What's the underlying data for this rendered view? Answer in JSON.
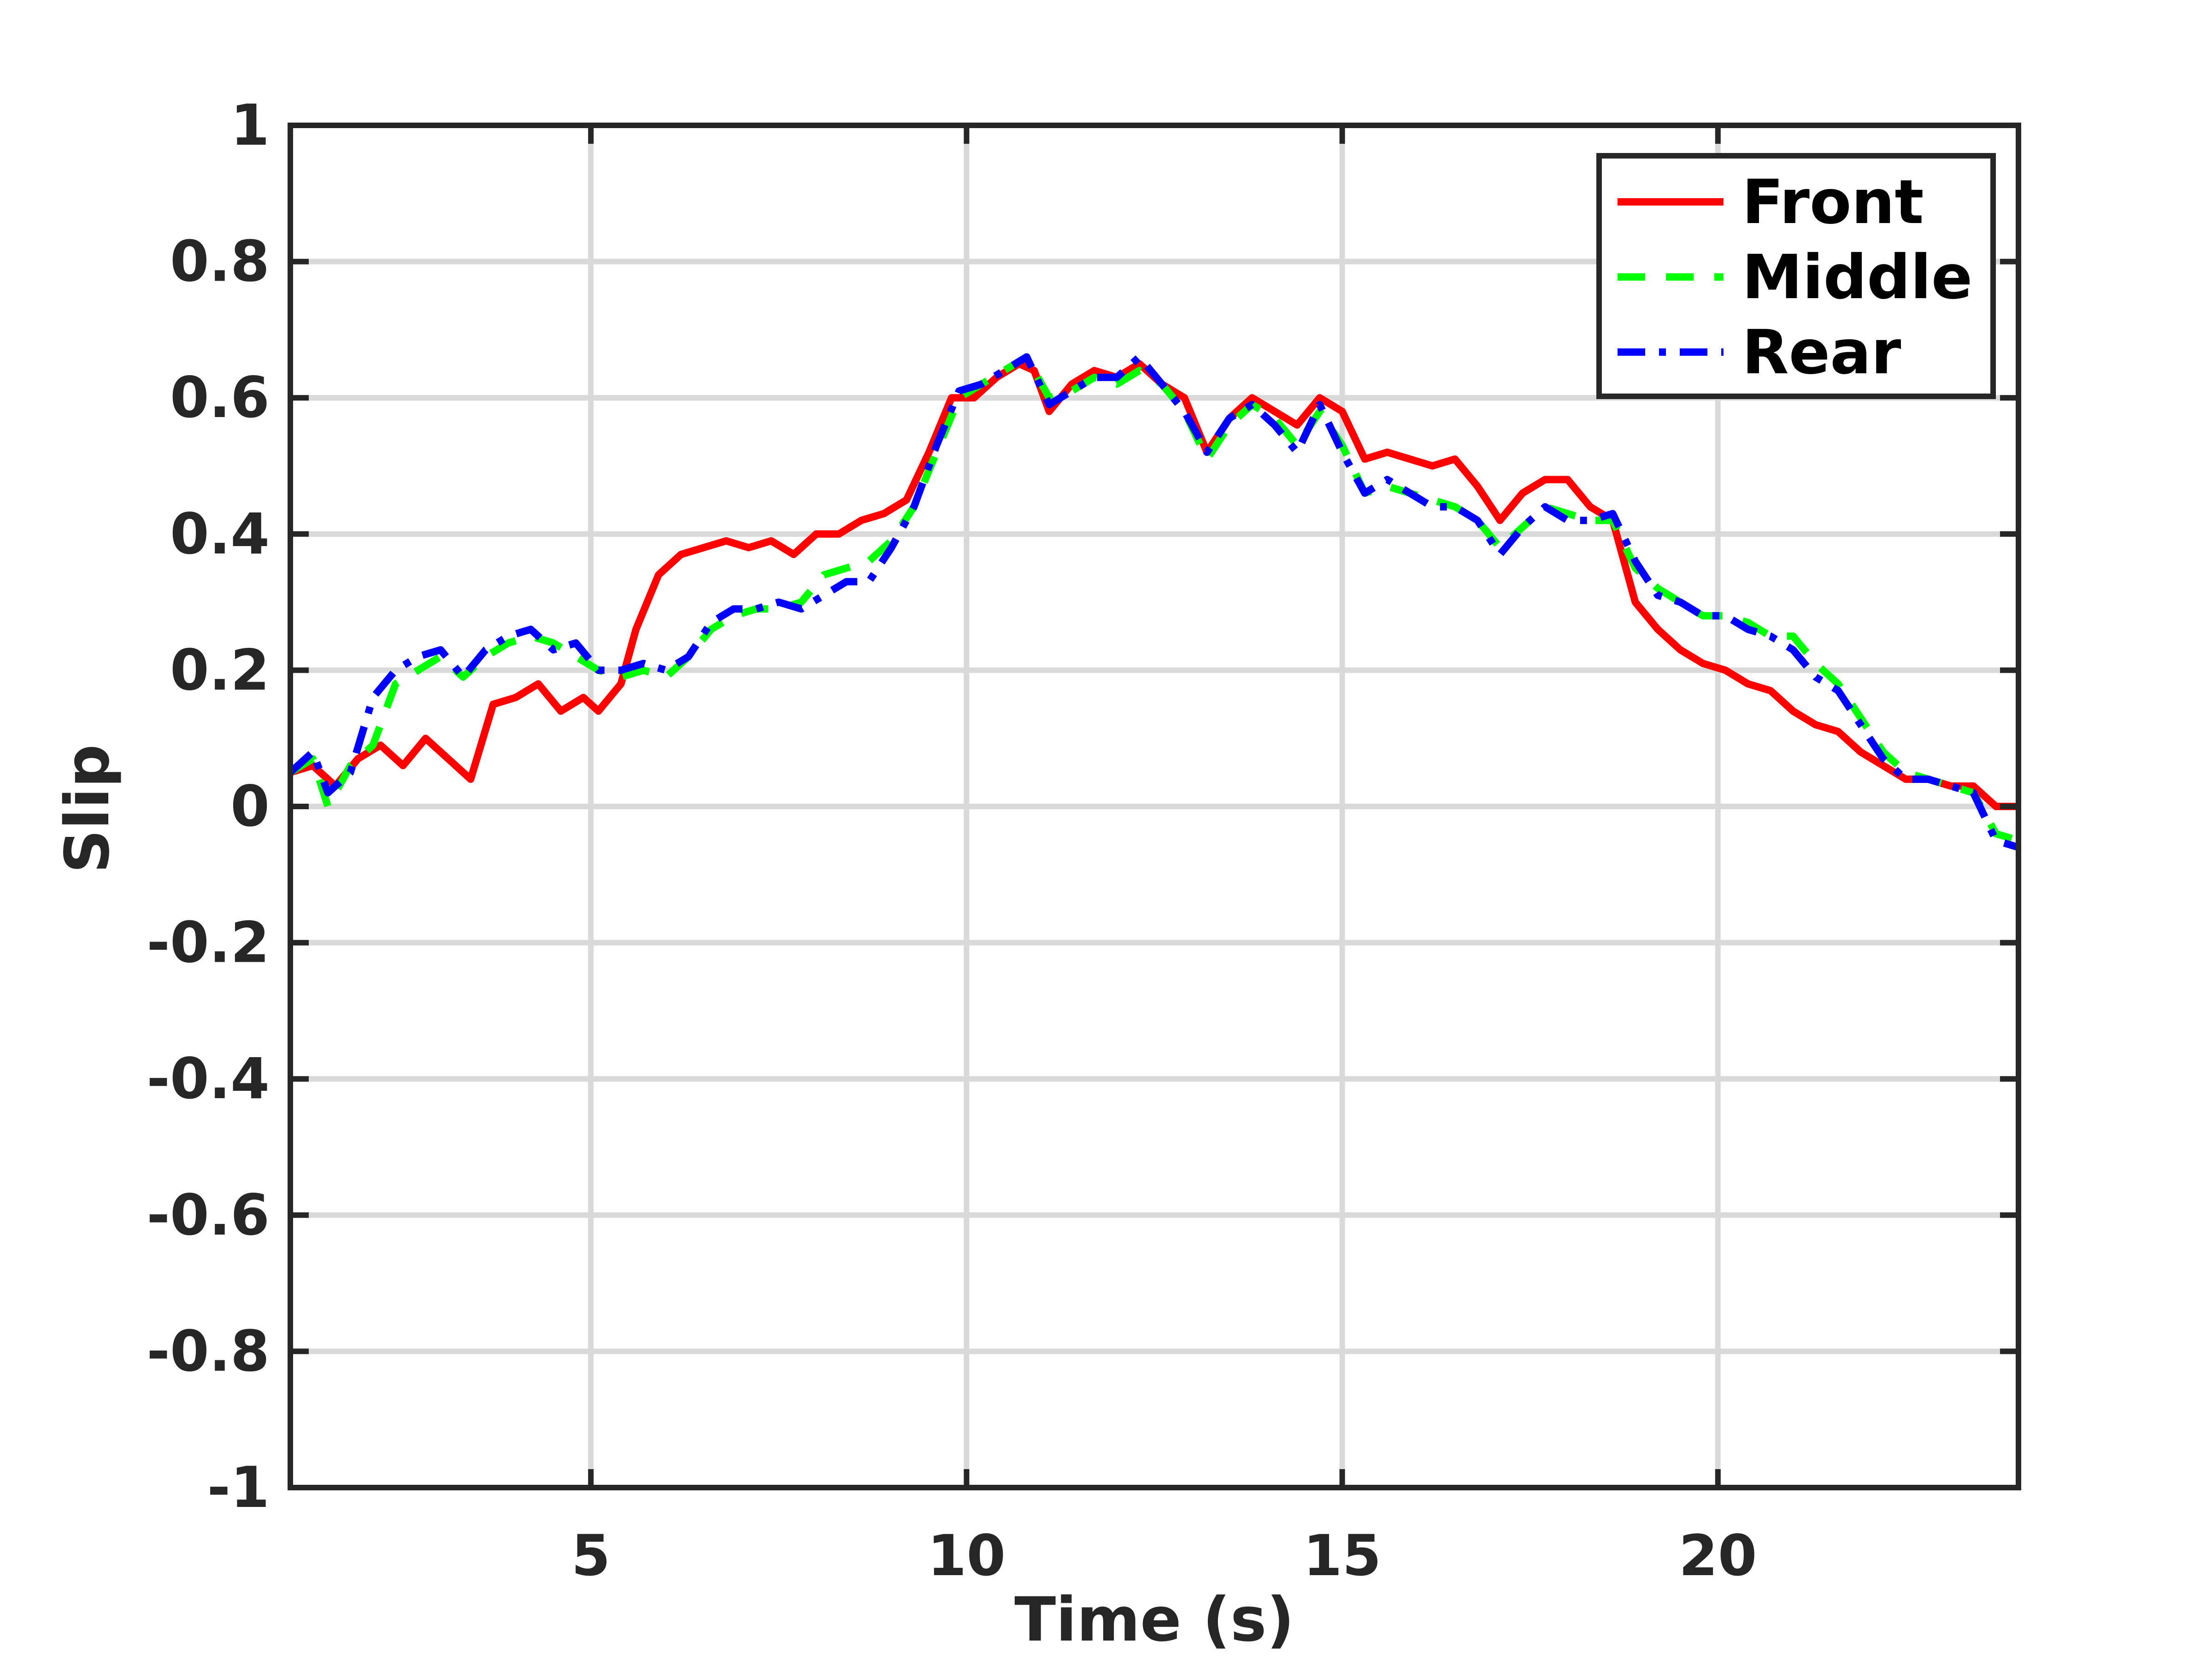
{
  "chart_data": {
    "type": "line",
    "title": "",
    "xlabel": "Time (s)",
    "ylabel": "Slip",
    "xlim": [
      1,
      24
    ],
    "ylim": [
      -1,
      1
    ],
    "xticks": [
      5,
      10,
      15,
      20
    ],
    "xtick_labels": [
      "5",
      "10",
      "15",
      "20"
    ],
    "yticks": [
      -1,
      -0.8,
      -0.6,
      -0.4,
      -0.2,
      0,
      0.2,
      0.4,
      0.6,
      0.8,
      1
    ],
    "ytick_labels": [
      "-1",
      "-0.8",
      "-0.6",
      "-0.4",
      "-0.2",
      "0",
      "0.2",
      "0.4",
      "0.6",
      "0.8",
      "1"
    ],
    "grid": true,
    "legend_position": "top-right",
    "series": [
      {
        "name": "Front",
        "color": "#ff0000",
        "dash": "solid",
        "points": [
          [
            1.0,
            0.05
          ],
          [
            1.3,
            0.06
          ],
          [
            1.6,
            0.03
          ],
          [
            1.9,
            0.07
          ],
          [
            2.2,
            0.09
          ],
          [
            2.5,
            0.06
          ],
          [
            2.8,
            0.1
          ],
          [
            3.1,
            0.07
          ],
          [
            3.4,
            0.04
          ],
          [
            3.7,
            0.15
          ],
          [
            4.0,
            0.16
          ],
          [
            4.3,
            0.18
          ],
          [
            4.6,
            0.14
          ],
          [
            4.9,
            0.16
          ],
          [
            5.1,
            0.14
          ],
          [
            5.4,
            0.18
          ],
          [
            5.6,
            0.26
          ],
          [
            5.9,
            0.34
          ],
          [
            6.2,
            0.37
          ],
          [
            6.5,
            0.38
          ],
          [
            6.8,
            0.39
          ],
          [
            7.1,
            0.38
          ],
          [
            7.4,
            0.39
          ],
          [
            7.7,
            0.37
          ],
          [
            8.0,
            0.4
          ],
          [
            8.3,
            0.4
          ],
          [
            8.6,
            0.42
          ],
          [
            8.9,
            0.43
          ],
          [
            9.2,
            0.45
          ],
          [
            9.5,
            0.52
          ],
          [
            9.8,
            0.6
          ],
          [
            10.1,
            0.6
          ],
          [
            10.4,
            0.63
          ],
          [
            10.7,
            0.65
          ],
          [
            10.9,
            0.64
          ],
          [
            11.1,
            0.58
          ],
          [
            11.4,
            0.62
          ],
          [
            11.7,
            0.64
          ],
          [
            12.0,
            0.63
          ],
          [
            12.3,
            0.65
          ],
          [
            12.6,
            0.62
          ],
          [
            12.9,
            0.6
          ],
          [
            13.2,
            0.52
          ],
          [
            13.5,
            0.57
          ],
          [
            13.8,
            0.6
          ],
          [
            14.1,
            0.58
          ],
          [
            14.4,
            0.56
          ],
          [
            14.7,
            0.6
          ],
          [
            15.0,
            0.58
          ],
          [
            15.3,
            0.51
          ],
          [
            15.6,
            0.52
          ],
          [
            15.9,
            0.51
          ],
          [
            16.2,
            0.5
          ],
          [
            16.5,
            0.51
          ],
          [
            16.8,
            0.47
          ],
          [
            17.1,
            0.42
          ],
          [
            17.4,
            0.46
          ],
          [
            17.7,
            0.48
          ],
          [
            18.0,
            0.48
          ],
          [
            18.3,
            0.44
          ],
          [
            18.6,
            0.42
          ],
          [
            18.9,
            0.3
          ],
          [
            19.2,
            0.26
          ],
          [
            19.5,
            0.23
          ],
          [
            19.8,
            0.21
          ],
          [
            20.1,
            0.2
          ],
          [
            20.4,
            0.18
          ],
          [
            20.7,
            0.17
          ],
          [
            21.0,
            0.14
          ],
          [
            21.3,
            0.12
          ],
          [
            21.6,
            0.11
          ],
          [
            21.9,
            0.08
          ],
          [
            22.2,
            0.06
          ],
          [
            22.5,
            0.04
          ],
          [
            22.8,
            0.04
          ],
          [
            23.1,
            0.03
          ],
          [
            23.4,
            0.03
          ],
          [
            23.7,
            0.0
          ],
          [
            24.0,
            0.0
          ]
        ]
      },
      {
        "name": "Middle",
        "color": "#00ff00",
        "dash": "dashed",
        "points": [
          [
            1.0,
            0.05
          ],
          [
            1.3,
            0.07
          ],
          [
            1.5,
            0.0
          ],
          [
            1.8,
            0.06
          ],
          [
            2.1,
            0.09
          ],
          [
            2.4,
            0.18
          ],
          [
            2.7,
            0.2
          ],
          [
            3.0,
            0.22
          ],
          [
            3.3,
            0.19
          ],
          [
            3.6,
            0.22
          ],
          [
            3.9,
            0.24
          ],
          [
            4.2,
            0.25
          ],
          [
            4.5,
            0.24
          ],
          [
            4.8,
            0.22
          ],
          [
            5.1,
            0.2
          ],
          [
            5.4,
            0.19
          ],
          [
            5.7,
            0.2
          ],
          [
            6.0,
            0.19
          ],
          [
            6.3,
            0.22
          ],
          [
            6.6,
            0.26
          ],
          [
            6.9,
            0.28
          ],
          [
            7.2,
            0.29
          ],
          [
            7.5,
            0.29
          ],
          [
            7.8,
            0.3
          ],
          [
            8.1,
            0.34
          ],
          [
            8.4,
            0.35
          ],
          [
            8.7,
            0.36
          ],
          [
            9.0,
            0.39
          ],
          [
            9.3,
            0.44
          ],
          [
            9.6,
            0.52
          ],
          [
            9.9,
            0.6
          ],
          [
            10.2,
            0.62
          ],
          [
            10.5,
            0.64
          ],
          [
            10.8,
            0.66
          ],
          [
            11.1,
            0.6
          ],
          [
            11.4,
            0.61
          ],
          [
            11.7,
            0.63
          ],
          [
            12.0,
            0.62
          ],
          [
            12.3,
            0.64
          ],
          [
            12.6,
            0.62
          ],
          [
            12.9,
            0.58
          ],
          [
            13.2,
            0.51
          ],
          [
            13.5,
            0.56
          ],
          [
            13.8,
            0.59
          ],
          [
            14.1,
            0.57
          ],
          [
            14.4,
            0.53
          ],
          [
            14.7,
            0.58
          ],
          [
            15.0,
            0.53
          ],
          [
            15.3,
            0.46
          ],
          [
            15.6,
            0.47
          ],
          [
            15.9,
            0.46
          ],
          [
            16.2,
            0.45
          ],
          [
            16.5,
            0.44
          ],
          [
            16.8,
            0.42
          ],
          [
            17.1,
            0.38
          ],
          [
            17.4,
            0.41
          ],
          [
            17.7,
            0.44
          ],
          [
            18.0,
            0.43
          ],
          [
            18.3,
            0.42
          ],
          [
            18.6,
            0.42
          ],
          [
            18.9,
            0.35
          ],
          [
            19.2,
            0.32
          ],
          [
            19.5,
            0.3
          ],
          [
            19.8,
            0.28
          ],
          [
            20.1,
            0.28
          ],
          [
            20.4,
            0.27
          ],
          [
            20.7,
            0.25
          ],
          [
            21.0,
            0.25
          ],
          [
            21.3,
            0.21
          ],
          [
            21.6,
            0.18
          ],
          [
            21.9,
            0.13
          ],
          [
            22.2,
            0.08
          ],
          [
            22.5,
            0.05
          ],
          [
            22.8,
            0.04
          ],
          [
            23.1,
            0.03
          ],
          [
            23.4,
            0.02
          ],
          [
            23.7,
            -0.04
          ],
          [
            24.0,
            -0.05
          ]
        ]
      },
      {
        "name": "Rear",
        "color": "#0000ff",
        "dash": "dashdot",
        "points": [
          [
            1.0,
            0.05
          ],
          [
            1.3,
            0.08
          ],
          [
            1.5,
            0.02
          ],
          [
            1.8,
            0.05
          ],
          [
            2.1,
            0.16
          ],
          [
            2.4,
            0.2
          ],
          [
            2.7,
            0.22
          ],
          [
            3.0,
            0.23
          ],
          [
            3.3,
            0.19
          ],
          [
            3.6,
            0.23
          ],
          [
            3.9,
            0.25
          ],
          [
            4.2,
            0.26
          ],
          [
            4.5,
            0.23
          ],
          [
            4.8,
            0.24
          ],
          [
            5.1,
            0.2
          ],
          [
            5.4,
            0.2
          ],
          [
            5.7,
            0.21
          ],
          [
            6.0,
            0.2
          ],
          [
            6.3,
            0.22
          ],
          [
            6.6,
            0.27
          ],
          [
            6.9,
            0.29
          ],
          [
            7.2,
            0.29
          ],
          [
            7.5,
            0.3
          ],
          [
            7.8,
            0.29
          ],
          [
            8.1,
            0.31
          ],
          [
            8.4,
            0.33
          ],
          [
            8.7,
            0.33
          ],
          [
            9.0,
            0.38
          ],
          [
            9.3,
            0.44
          ],
          [
            9.6,
            0.53
          ],
          [
            9.9,
            0.61
          ],
          [
            10.2,
            0.62
          ],
          [
            10.5,
            0.64
          ],
          [
            10.8,
            0.66
          ],
          [
            11.1,
            0.59
          ],
          [
            11.4,
            0.61
          ],
          [
            11.7,
            0.63
          ],
          [
            12.0,
            0.63
          ],
          [
            12.3,
            0.66
          ],
          [
            12.6,
            0.62
          ],
          [
            12.9,
            0.58
          ],
          [
            13.2,
            0.52
          ],
          [
            13.5,
            0.57
          ],
          [
            13.8,
            0.59
          ],
          [
            14.1,
            0.56
          ],
          [
            14.4,
            0.52
          ],
          [
            14.7,
            0.59
          ],
          [
            15.0,
            0.52
          ],
          [
            15.3,
            0.46
          ],
          [
            15.6,
            0.48
          ],
          [
            15.9,
            0.46
          ],
          [
            16.2,
            0.44
          ],
          [
            16.5,
            0.44
          ],
          [
            16.8,
            0.42
          ],
          [
            17.1,
            0.37
          ],
          [
            17.4,
            0.41
          ],
          [
            17.7,
            0.44
          ],
          [
            18.0,
            0.42
          ],
          [
            18.3,
            0.42
          ],
          [
            18.6,
            0.43
          ],
          [
            18.9,
            0.36
          ],
          [
            19.2,
            0.31
          ],
          [
            19.5,
            0.3
          ],
          [
            19.8,
            0.28
          ],
          [
            20.1,
            0.28
          ],
          [
            20.4,
            0.26
          ],
          [
            20.7,
            0.25
          ],
          [
            21.0,
            0.23
          ],
          [
            21.3,
            0.19
          ],
          [
            21.6,
            0.17
          ],
          [
            21.9,
            0.12
          ],
          [
            22.2,
            0.07
          ],
          [
            22.5,
            0.04
          ],
          [
            22.8,
            0.04
          ],
          [
            23.1,
            0.03
          ],
          [
            23.4,
            0.02
          ],
          [
            23.7,
            -0.05
          ],
          [
            24.0,
            -0.06
          ]
        ]
      }
    ]
  }
}
